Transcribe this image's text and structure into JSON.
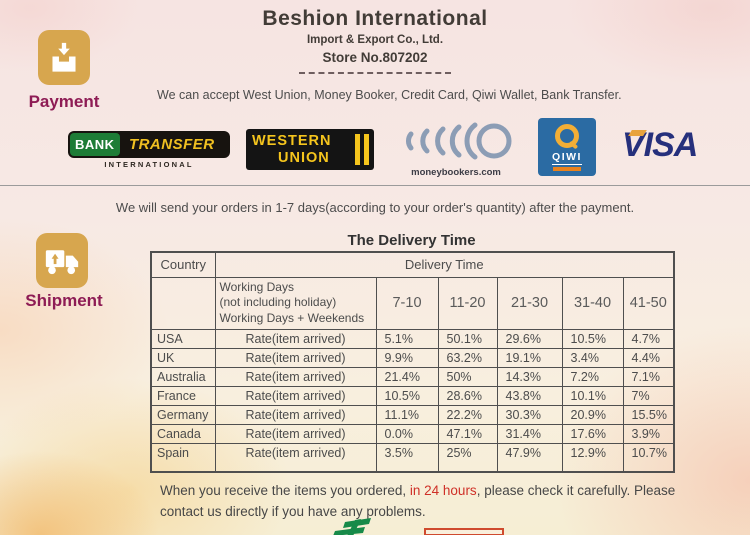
{
  "header": {
    "company": "Beshion International",
    "subtitle": "Import & Export Co., Ltd.",
    "store_no": "Store No.807202"
  },
  "payment": {
    "label": "Payment",
    "accept_text": "We can accept West Union, Money Booker, Credit Card, Qiwi Wallet, Bank Transfer.",
    "methods": {
      "bank_transfer": {
        "word1": "BANK",
        "word2": "TRANSFER",
        "word3": "INTERNATIONAL"
      },
      "western_union": {
        "word1": "WESTERN",
        "word2": "UNION"
      },
      "moneybookers": {
        "caption": "moneybookers.com"
      },
      "qiwi": {
        "name": "QIWI"
      },
      "visa": {
        "name": "VISA"
      }
    }
  },
  "shipment": {
    "label": "Shipment",
    "intro": "We will send your orders in 1-7 days(according to your order's quantity) after the payment.",
    "table": {
      "title": "The Delivery Time",
      "col_country": "Country",
      "col_delivery": "Delivery Time",
      "working_days_lines": [
        "Working Days",
        "(not including holiday)",
        "Working Days + Weekends"
      ],
      "ranges": [
        "7-10",
        "11-20",
        "21-30",
        "31-40",
        "41-50"
      ],
      "rate_label": "Rate(item arrived)",
      "rows": [
        {
          "country": "USA",
          "rates": [
            "5.1%",
            "50.1%",
            "29.6%",
            "10.5%",
            "4.7%"
          ]
        },
        {
          "country": "UK",
          "rates": [
            "9.9%",
            "63.2%",
            "19.1%",
            "3.4%",
            "4.4%"
          ]
        },
        {
          "country": "Australia",
          "rates": [
            "21.4%",
            "50%",
            "14.3%",
            "7.2%",
            "7.1%"
          ]
        },
        {
          "country": "France",
          "rates": [
            "10.5%",
            "28.6%",
            "43.8%",
            "10.1%",
            "7%"
          ]
        },
        {
          "country": "Germany",
          "rates": [
            "11.1%",
            "22.2%",
            "30.3%",
            "20.9%",
            "15.5%"
          ]
        },
        {
          "country": "Canada",
          "rates": [
            "0.0%",
            "47.1%",
            "31.4%",
            "17.6%",
            "3.9%"
          ]
        },
        {
          "country": "Spain",
          "rates": [
            "3.5%",
            "25%",
            "47.9%",
            "12.9%",
            "10.7%"
          ]
        }
      ]
    }
  },
  "footer": {
    "note_before": "When you receive the items you ordered, ",
    "note_highlight": "in 24 hours",
    "note_after": ", please check it carefully. Please contact us directly if you have any problems."
  },
  "colors": {
    "accent_gold": "#d7a64e",
    "label_magenta": "#8e1c55",
    "highlight_red": "#cf3028",
    "visa_blue": "#26307c",
    "wu_yellow": "#f5c51d",
    "qiwi_blue": "#2b6ba3",
    "table_border": "#4f4f4f"
  }
}
